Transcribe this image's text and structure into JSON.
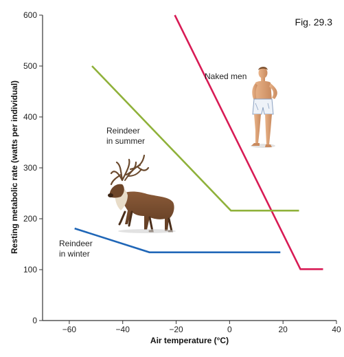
{
  "chart_data": {
    "type": "line",
    "figure_label": "Fig. 29.3",
    "xlabel": "Air temperature (°C)",
    "ylabel": "Resting metabolic rate (watts per individual)",
    "xlim": [
      -70,
      40
    ],
    "ylim": [
      0,
      600
    ],
    "xticks": [
      -60,
      -40,
      -20,
      0,
      20,
      40
    ],
    "yticks": [
      0,
      100,
      200,
      300,
      400,
      500,
      600
    ],
    "grid": false,
    "colors": {
      "naked_men": "#d81b55",
      "reindeer_summer": "#8fb13a",
      "reindeer_winter": "#1f66b7"
    },
    "series": [
      {
        "key": "naked_men",
        "name": "Naked men",
        "color": "#d81b55",
        "x": [
          -20.5,
          26.5,
          35
        ],
        "y": [
          600,
          101,
          101
        ]
      },
      {
        "key": "reindeer_summer",
        "name": "Reindeer in summer",
        "color": "#8fb13a",
        "x": [
          -51.5,
          0.5,
          26
        ],
        "y": [
          500,
          216,
          216
        ]
      },
      {
        "key": "reindeer_winter",
        "name": "Reindeer in winter",
        "color": "#1f66b7",
        "x": [
          -58,
          -30,
          19
        ],
        "y": [
          181,
          134,
          134
        ]
      }
    ],
    "annotations": [
      {
        "key": "naked_men",
        "lines": [
          "Naked men"
        ]
      },
      {
        "key": "reindeer_summer",
        "lines": [
          "Reindeer",
          "in summer"
        ]
      },
      {
        "key": "reindeer_winter",
        "lines": [
          "Reindeer",
          "in winter"
        ]
      }
    ],
    "illustrations": [
      "person-icon",
      "reindeer-icon"
    ]
  }
}
